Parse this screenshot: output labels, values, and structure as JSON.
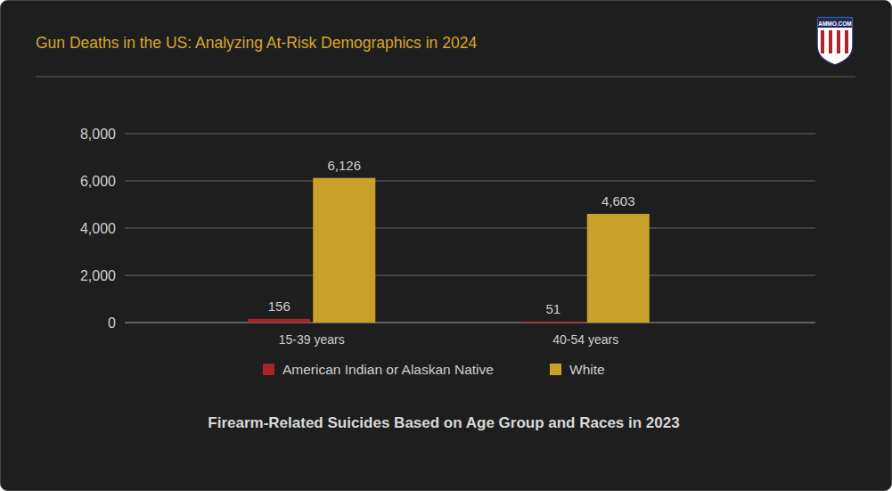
{
  "brand": "AMMO.COM",
  "chart_data": {
    "type": "bar",
    "title": "Gun Deaths in the US: Analyzing At-Risk Demographics in 2024",
    "subtitle": "Firearm-Related Suicides Based on Age Group and Races in 2023",
    "categories": [
      "15-39 years",
      "40-54 years"
    ],
    "series": [
      {
        "name": "American Indian or Alaskan Native",
        "color": "#a8232a",
        "values": [
          156,
          51
        ]
      },
      {
        "name": "White",
        "color": "#c9a02a",
        "values": [
          6126,
          4603
        ],
        "value_labels": [
          "6,126",
          "4,603"
        ]
      }
    ],
    "ylim": [
      0,
      8000
    ],
    "yticks": [
      0,
      {
        "value": 2000,
        "label": "2,000"
      },
      {
        "value": 4000,
        "label": "4,000"
      },
      {
        "value": 6000,
        "label": "6,000"
      },
      {
        "value": 8000,
        "label": "8,000"
      }
    ],
    "grid": true,
    "data_labels": true,
    "legend": "bottom"
  }
}
